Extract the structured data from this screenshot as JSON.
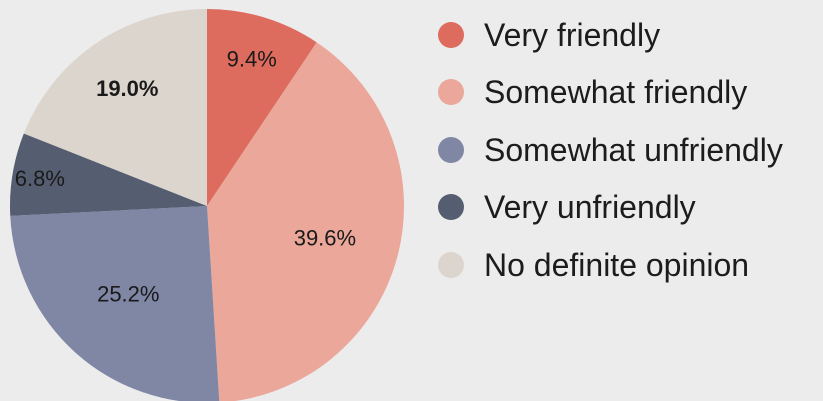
{
  "chart_data": {
    "type": "pie",
    "categories": [
      "Very friendly",
      "Somewhat friendly",
      "Somewhat unfriendly",
      "Very unfriendly",
      "No definite opinion"
    ],
    "values": [
      9.4,
      39.6,
      25.2,
      6.8,
      19.0
    ],
    "value_labels": [
      "9.4%",
      "39.6%",
      "25.2%",
      "6.8%",
      "19.0%"
    ],
    "colors": [
      "#dd6b5e",
      "#eaa79a",
      "#7f87a5",
      "#555d70",
      "#dcd5cd"
    ],
    "start": "12 o'clock",
    "direction": "clockwise",
    "legend_position": "right"
  }
}
